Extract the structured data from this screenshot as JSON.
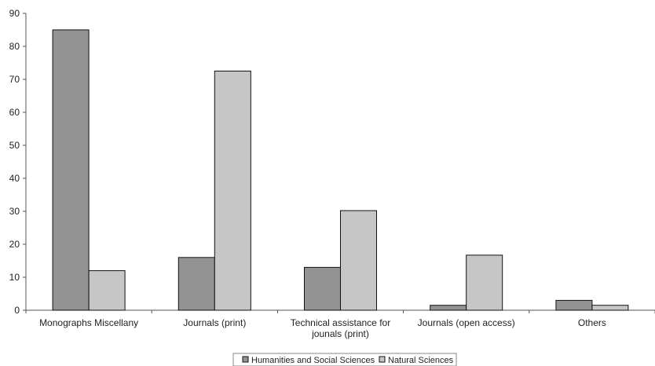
{
  "chart_data": {
    "type": "bar",
    "categories": [
      [
        "Monographs Miscellany"
      ],
      [
        "Journals (print)"
      ],
      [
        "Technical assistance for",
        "jounals (print)"
      ],
      [
        "Journals (open access)"
      ],
      [
        "Others"
      ]
    ],
    "series": [
      {
        "name": "Humanities and Social Sciences",
        "color": "#939393",
        "values": [
          85,
          16,
          13,
          1.5,
          3
        ]
      },
      {
        "name": "Natural Sciences",
        "color": "#c6c6c6",
        "values": [
          12,
          72.5,
          30.2,
          16.7,
          1.5
        ]
      }
    ],
    "ylim": [
      0,
      90
    ],
    "yticks": [
      0,
      10,
      20,
      30,
      40,
      50,
      60,
      70,
      80,
      90
    ],
    "grid": false,
    "legend_position": "bottom"
  }
}
